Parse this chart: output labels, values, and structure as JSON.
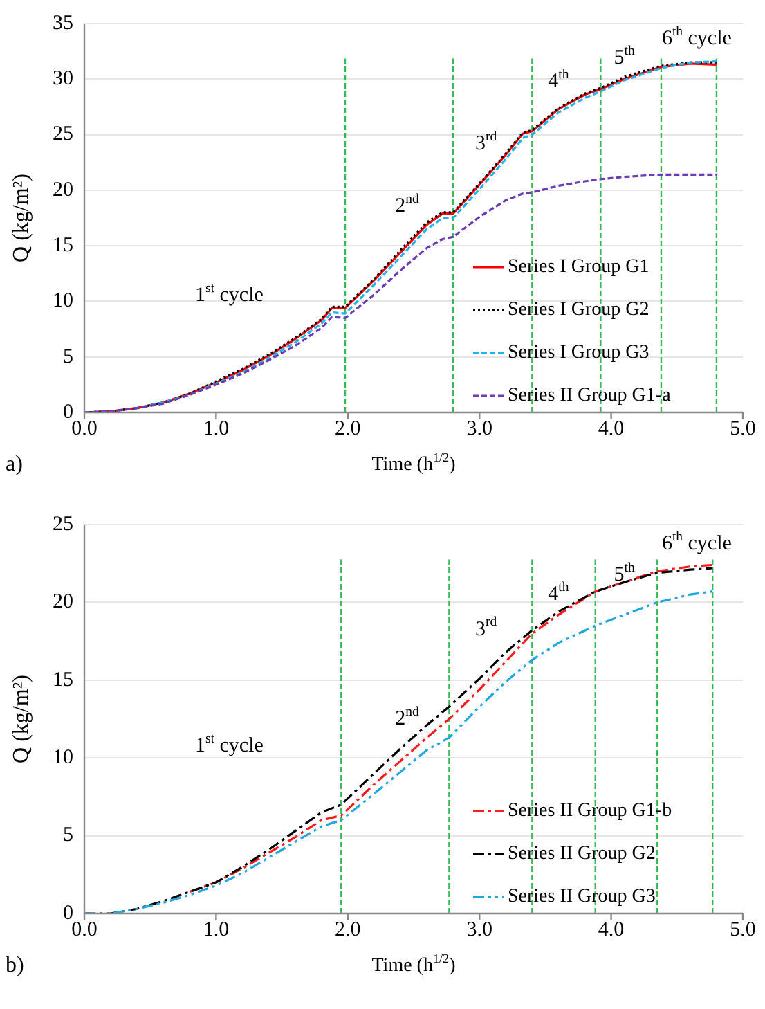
{
  "chart_data": [
    {
      "type": "line",
      "xlabel": "Time (h$^{1/2}$)",
      "ylabel": "Q (kg/m²)",
      "x": [
        0,
        0.2,
        0.4,
        0.6,
        0.8,
        1.0,
        1.2,
        1.4,
        1.6,
        1.8,
        1.88,
        1.98,
        2.2,
        2.4,
        2.6,
        2.72,
        2.8,
        3.0,
        3.2,
        3.33,
        3.4,
        3.6,
        3.8,
        3.92,
        4.1,
        4.38,
        4.6,
        4.8
      ],
      "series": [
        {
          "name": "Series I Group G1",
          "color": "#ff0000",
          "line_style": "solid",
          "values": [
            0,
            0.1,
            0.4,
            0.9,
            1.7,
            2.7,
            3.8,
            5.1,
            6.6,
            8.3,
            9.4,
            9.4,
            11.9,
            14.4,
            16.9,
            17.9,
            17.9,
            20.5,
            23.2,
            25.1,
            25.3,
            27.3,
            28.6,
            29.1,
            30.0,
            31.1,
            31.4,
            31.3
          ]
        },
        {
          "name": "Series I Group G2",
          "color": "#000000",
          "line_style": "dotted",
          "values": [
            0,
            0.1,
            0.4,
            0.9,
            1.7,
            2.8,
            3.9,
            5.2,
            6.7,
            8.4,
            9.5,
            9.5,
            12.0,
            14.6,
            17.1,
            18.0,
            18.0,
            20.6,
            23.3,
            25.2,
            25.4,
            27.4,
            28.7,
            29.2,
            30.2,
            31.2,
            31.5,
            31.5
          ]
        },
        {
          "name": "Series I Group G3",
          "color": "#1fb4f0",
          "line_style": "dashed",
          "values": [
            0,
            0.1,
            0.4,
            0.9,
            1.6,
            2.6,
            3.6,
            4.9,
            6.3,
            8.0,
            9.0,
            8.9,
            11.5,
            14.0,
            16.5,
            17.5,
            17.5,
            20.1,
            22.8,
            24.7,
            25.0,
            27.0,
            28.3,
            28.9,
            29.9,
            31.0,
            31.5,
            31.6
          ]
        },
        {
          "name": "Series II Group G1-a",
          "color": "#6a3db8",
          "line_style": "dashed",
          "values": [
            0,
            0.1,
            0.4,
            0.8,
            1.6,
            2.5,
            3.5,
            4.7,
            6.0,
            7.6,
            8.6,
            8.5,
            10.6,
            12.8,
            14.8,
            15.6,
            15.8,
            17.6,
            19.1,
            19.7,
            19.8,
            20.4,
            20.8,
            21.0,
            21.2,
            21.4,
            21.4,
            21.4
          ]
        }
      ],
      "xlim": [
        0,
        5
      ],
      "xticks": [
        {
          "value": 0,
          "label": "0.0"
        },
        {
          "value": 1,
          "label": "1.0"
        },
        {
          "value": 2,
          "label": "2.0"
        },
        {
          "value": 3,
          "label": "3.0"
        },
        {
          "value": 4,
          "label": "4.0"
        },
        {
          "value": 5,
          "label": "5.0"
        }
      ],
      "ylim": [
        0,
        35
      ],
      "yticks": [
        0,
        5,
        10,
        15,
        20,
        25,
        30,
        35
      ],
      "grid": "y",
      "legend": "bottom right",
      "marker": "none",
      "ref_lines": [
        {
          "axis": "x",
          "value": 1.98,
          "color": "#33bb55",
          "line_style": "dashed"
        },
        {
          "axis": "x",
          "value": 2.8,
          "color": "#33bb55",
          "line_style": "dashed"
        },
        {
          "axis": "x",
          "value": 3.4,
          "color": "#33bb55",
          "line_style": "dashed"
        },
        {
          "axis": "x",
          "value": 3.92,
          "color": "#33bb55",
          "line_style": "dashed"
        },
        {
          "axis": "x",
          "value": 4.38,
          "color": "#33bb55",
          "line_style": "dashed"
        },
        {
          "axis": "x",
          "value": 4.8,
          "color": "#33bb55",
          "line_style": "dashed"
        }
      ],
      "annotations": [
        "1$^{st}$ cycle",
        "2$^{nd}$",
        "3$^{rd}$",
        "4$^{th}$",
        "5$^{th}$",
        "6$^{th}$ cycle",
        "a)"
      ]
    },
    {
      "type": "line",
      "xlabel": "Time (h$^{1/2}$)",
      "ylabel": "Q (kg/m²)",
      "x": [
        0,
        0.2,
        0.4,
        0.6,
        0.8,
        1.0,
        1.2,
        1.4,
        1.6,
        1.8,
        1.95,
        2.2,
        2.4,
        2.6,
        2.77,
        3.0,
        3.2,
        3.4,
        3.6,
        3.88,
        4.1,
        4.35,
        4.6,
        4.77
      ],
      "series": [
        {
          "name": "Series II Group G1-b",
          "color": "#ff1a1a",
          "line_style": "dashdot",
          "values": [
            null,
            null,
            null,
            null,
            1.4,
            2.0,
            2.9,
            3.9,
            4.9,
            6.0,
            6.3,
            8.3,
            9.8,
            11.3,
            12.5,
            14.4,
            16.2,
            18.0,
            19.2,
            20.7,
            21.3,
            22.0,
            22.3,
            22.4
          ]
        },
        {
          "name": "Series II Group G2",
          "color": "#000000",
          "line_style": "dashdot",
          "values": [
            0,
            0,
            0.3,
            0.8,
            1.4,
            2.0,
            3.0,
            4.1,
            5.3,
            6.5,
            7.0,
            9.0,
            10.6,
            12.1,
            13.3,
            15.1,
            16.8,
            18.2,
            19.4,
            20.7,
            21.3,
            21.9,
            22.1,
            22.2
          ]
        },
        {
          "name": "Series II Group G3",
          "color": "#1fa8e0",
          "line_style": "dashdotdot",
          "values": [
            0,
            0,
            0.3,
            0.7,
            1.2,
            1.8,
            2.6,
            3.6,
            4.6,
            5.6,
            6.0,
            7.7,
            9.1,
            10.5,
            11.3,
            13.3,
            14.9,
            16.3,
            17.4,
            18.5,
            19.2,
            20.0,
            20.5,
            20.7
          ]
        }
      ],
      "xlim": [
        0,
        5
      ],
      "xticks": [
        {
          "value": 0,
          "label": "0.0"
        },
        {
          "value": 1,
          "label": "1.0"
        },
        {
          "value": 2,
          "label": "2.0"
        },
        {
          "value": 3,
          "label": "3.0"
        },
        {
          "value": 4,
          "label": "4.0"
        },
        {
          "value": 5,
          "label": "5.0"
        }
      ],
      "ylim": [
        0,
        25
      ],
      "yticks": [
        0,
        5,
        10,
        15,
        20,
        25
      ],
      "grid": "y",
      "legend": "bottom right",
      "marker": "none",
      "ref_lines": [
        {
          "axis": "x",
          "value": 1.95,
          "color": "#33bb55",
          "line_style": "dashed"
        },
        {
          "axis": "x",
          "value": 2.77,
          "color": "#33bb55",
          "line_style": "dashed"
        },
        {
          "axis": "x",
          "value": 3.4,
          "color": "#33bb55",
          "line_style": "dashed"
        },
        {
          "axis": "x",
          "value": 3.88,
          "color": "#33bb55",
          "line_style": "dashed"
        },
        {
          "axis": "x",
          "value": 4.35,
          "color": "#33bb55",
          "line_style": "dashed"
        },
        {
          "axis": "x",
          "value": 4.77,
          "color": "#33bb55",
          "line_style": "dashed"
        }
      ],
      "annotations": [
        "1$^{st}$ cycle",
        "2$^{nd}$",
        "3$^{rd}$",
        "4$^{th}$",
        "5$^{th}$",
        "6$^{th}$ cycle",
        "b)"
      ]
    }
  ]
}
